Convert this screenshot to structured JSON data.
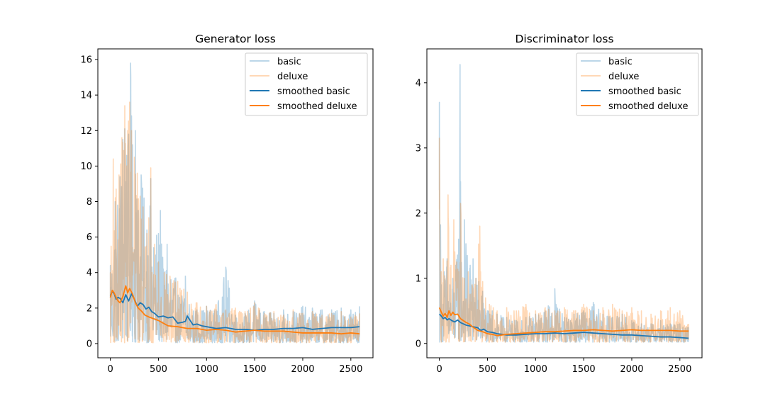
{
  "chart_data": [
    {
      "type": "line",
      "title": "Generator loss",
      "xlabel": "",
      "ylabel": "",
      "xlim": [
        -130,
        2730
      ],
      "ylim": [
        -0.8,
        16.6
      ],
      "xticks": [
        0,
        500,
        1000,
        1500,
        2000,
        2500
      ],
      "yticks": [
        0,
        2,
        4,
        6,
        8,
        10,
        12,
        14,
        16
      ],
      "grid": false,
      "legend_position": "upper right",
      "series": [
        {
          "name": "basic",
          "color": "#1f77b4",
          "alpha": 0.3,
          "kind": "raw",
          "x": [
            0,
            50,
            100,
            130,
            150,
            170,
            190,
            210,
            230,
            260,
            290,
            320,
            350,
            380,
            420,
            450,
            480,
            520,
            550,
            590,
            630,
            680,
            720,
            780,
            820,
            900,
            1000,
            1100,
            1200,
            1300,
            1400,
            1500,
            1600,
            1700,
            1800,
            1900,
            2000,
            2100,
            2200,
            2300,
            2400,
            2500,
            2590
          ],
          "y": [
            4.4,
            8.0,
            9.4,
            11.5,
            12.1,
            10.6,
            11.8,
            15.8,
            11.2,
            12.0,
            7.5,
            9.5,
            8.2,
            6.4,
            9.3,
            5.4,
            6.1,
            7.5,
            4.2,
            5.6,
            3.6,
            3.7,
            2.6,
            3.8,
            2.2,
            1.9,
            2.1,
            1.9,
            4.3,
            1.6,
            1.7,
            2.4,
            1.8,
            1.7,
            1.9,
            1.8,
            2.1,
            2.0,
            1.9,
            1.9,
            2.0,
            1.9,
            2.1
          ]
        },
        {
          "name": "deluxe",
          "color": "#ff7f0e",
          "alpha": 0.3,
          "kind": "raw",
          "x": [
            0,
            30,
            60,
            90,
            120,
            150,
            180,
            200,
            220,
            250,
            280,
            310,
            340,
            380,
            420,
            460,
            500,
            560,
            620,
            700,
            800,
            900,
            1000,
            1100,
            1200,
            1300,
            1400,
            1500,
            1600,
            1700,
            1800,
            1900,
            2000,
            2100,
            2200,
            2300,
            2400,
            2500,
            2590
          ],
          "y": [
            4.0,
            10.4,
            8.7,
            9.5,
            11.6,
            13.4,
            12.0,
            13.6,
            12.0,
            10.5,
            9.6,
            8.3,
            7.7,
            6.2,
            9.9,
            5.6,
            4.6,
            4.0,
            3.8,
            3.5,
            2.9,
            2.3,
            2.1,
            2.2,
            1.9,
            2.0,
            1.8,
            2.3,
            1.7,
            1.8,
            1.6,
            1.9,
            1.7,
            1.8,
            1.6,
            1.7,
            1.8,
            1.5,
            1.7
          ]
        },
        {
          "name": "smoothed basic",
          "color": "#1f77b4",
          "alpha": 1.0,
          "kind": "smoothed",
          "x": [
            0,
            20,
            40,
            60,
            80,
            100,
            130,
            160,
            190,
            220,
            250,
            280,
            310,
            340,
            370,
            400,
            430,
            460,
            500,
            550,
            600,
            650,
            700,
            750,
            780,
            800,
            830,
            860,
            900,
            950,
            1000,
            1100,
            1200,
            1300,
            1400,
            1500,
            1600,
            1700,
            1800,
            1900,
            2000,
            2100,
            2200,
            2300,
            2400,
            2500,
            2590
          ],
          "y": [
            2.7,
            2.95,
            2.8,
            2.5,
            2.6,
            2.55,
            2.3,
            2.75,
            2.4,
            2.8,
            2.5,
            2.1,
            2.3,
            2.2,
            1.95,
            2.05,
            1.8,
            1.7,
            1.5,
            1.55,
            1.45,
            1.5,
            1.15,
            1.2,
            1.25,
            1.55,
            1.3,
            1.05,
            1.1,
            1.0,
            0.95,
            0.85,
            0.9,
            0.8,
            0.8,
            0.75,
            0.8,
            0.8,
            0.85,
            0.85,
            0.9,
            0.8,
            0.85,
            0.9,
            0.9,
            0.9,
            0.95
          ]
        },
        {
          "name": "smoothed deluxe",
          "color": "#ff7f0e",
          "alpha": 1.0,
          "kind": "smoothed",
          "x": [
            0,
            20,
            40,
            60,
            80,
            100,
            130,
            160,
            180,
            200,
            230,
            260,
            290,
            320,
            360,
            400,
            450,
            500,
            550,
            600,
            700,
            800,
            900,
            1000,
            1100,
            1200,
            1300,
            1400,
            1500,
            1600,
            1700,
            1800,
            1900,
            2000,
            2100,
            2200,
            2300,
            2400,
            2500,
            2590
          ],
          "y": [
            2.6,
            3.0,
            2.85,
            2.6,
            2.4,
            2.3,
            2.65,
            3.25,
            2.85,
            3.1,
            2.8,
            2.3,
            2.0,
            1.85,
            1.6,
            1.5,
            1.4,
            1.3,
            1.15,
            1.0,
            0.95,
            0.85,
            0.85,
            0.75,
            0.8,
            0.75,
            0.65,
            0.7,
            0.75,
            0.7,
            0.7,
            0.7,
            0.65,
            0.6,
            0.6,
            0.6,
            0.6,
            0.55,
            0.6,
            0.55
          ]
        }
      ]
    },
    {
      "type": "line",
      "title": "Discriminator loss",
      "xlabel": "",
      "ylabel": "",
      "xlim": [
        -130,
        2730
      ],
      "ylim": [
        -0.22,
        4.52
      ],
      "xticks": [
        0,
        500,
        1000,
        1500,
        2000,
        2500
      ],
      "yticks": [
        0,
        1,
        2,
        3,
        4
      ],
      "grid": false,
      "legend_position": "upper right",
      "series": [
        {
          "name": "basic",
          "color": "#1f77b4",
          "alpha": 0.3,
          "kind": "raw",
          "x": [
            0,
            20,
            50,
            80,
            110,
            140,
            170,
            200,
            215,
            230,
            260,
            290,
            320,
            350,
            380,
            410,
            450,
            500,
            550,
            600,
            700,
            800,
            900,
            1000,
            1100,
            1200,
            1300,
            1400,
            1500,
            1600,
            1700,
            1800,
            1900,
            2000,
            2100,
            2200,
            2300,
            2400,
            2500,
            2590
          ],
          "y": [
            3.7,
            0.9,
            1.1,
            1.3,
            0.9,
            1.0,
            1.2,
            1.6,
            4.28,
            1.1,
            1.9,
            1.35,
            1.2,
            1.3,
            1.0,
            0.95,
            0.8,
            0.5,
            0.5,
            0.45,
            0.4,
            0.35,
            0.4,
            0.45,
            0.5,
            0.84,
            0.4,
            0.45,
            0.5,
            0.63,
            0.45,
            0.4,
            0.45,
            0.35,
            0.3,
            0.3,
            0.35,
            0.3,
            0.3,
            0.25
          ]
        },
        {
          "name": "deluxe",
          "color": "#ff7f0e",
          "alpha": 0.3,
          "kind": "raw",
          "x": [
            0,
            20,
            40,
            60,
            90,
            120,
            150,
            180,
            200,
            220,
            260,
            300,
            340,
            380,
            420,
            450,
            480,
            520,
            560,
            600,
            700,
            800,
            900,
            1000,
            1100,
            1200,
            1300,
            1400,
            1500,
            1600,
            1700,
            1800,
            1900,
            2000,
            2100,
            2200,
            2300,
            2400,
            2500,
            2590
          ],
          "y": [
            3.15,
            1.1,
            1.3,
            1.0,
            2.28,
            1.2,
            1.9,
            1.25,
            1.1,
            2.15,
            1.0,
            1.1,
            0.9,
            1.0,
            1.8,
            0.95,
            0.7,
            0.6,
            0.55,
            0.5,
            0.55,
            0.5,
            0.6,
            0.5,
            0.55,
            0.5,
            0.55,
            0.5,
            0.6,
            0.5,
            0.55,
            0.6,
            0.5,
            0.55,
            0.5,
            0.45,
            0.5,
            0.55,
            0.5,
            0.3
          ]
        },
        {
          "name": "smoothed basic",
          "color": "#1f77b4",
          "alpha": 1.0,
          "kind": "smoothed",
          "x": [
            0,
            20,
            40,
            60,
            80,
            100,
            130,
            160,
            190,
            220,
            250,
            280,
            310,
            340,
            370,
            400,
            430,
            460,
            500,
            550,
            600,
            650,
            700,
            800,
            900,
            1000,
            1100,
            1200,
            1300,
            1400,
            1500,
            1600,
            1700,
            1800,
            1900,
            2000,
            2100,
            2200,
            2300,
            2400,
            2500,
            2590
          ],
          "y": [
            0.45,
            0.42,
            0.38,
            0.4,
            0.36,
            0.38,
            0.35,
            0.33,
            0.36,
            0.32,
            0.3,
            0.28,
            0.27,
            0.26,
            0.25,
            0.24,
            0.2,
            0.22,
            0.18,
            0.17,
            0.15,
            0.14,
            0.13,
            0.13,
            0.14,
            0.15,
            0.15,
            0.16,
            0.15,
            0.16,
            0.17,
            0.16,
            0.15,
            0.14,
            0.13,
            0.13,
            0.12,
            0.11,
            0.1,
            0.1,
            0.09,
            0.08
          ]
        },
        {
          "name": "smoothed deluxe",
          "color": "#ff7f0e",
          "alpha": 1.0,
          "kind": "smoothed",
          "x": [
            0,
            20,
            40,
            60,
            80,
            100,
            120,
            140,
            160,
            190,
            220,
            250,
            280,
            310,
            350,
            400,
            450,
            500,
            550,
            600,
            650,
            700,
            800,
            900,
            1000,
            1100,
            1200,
            1300,
            1400,
            1500,
            1600,
            1700,
            1800,
            1900,
            2000,
            2100,
            2200,
            2300,
            2400,
            2500,
            2590
          ],
          "y": [
            0.55,
            0.48,
            0.42,
            0.46,
            0.4,
            0.5,
            0.43,
            0.48,
            0.44,
            0.45,
            0.38,
            0.35,
            0.32,
            0.3,
            0.25,
            0.2,
            0.18,
            0.15,
            0.14,
            0.12,
            0.13,
            0.14,
            0.15,
            0.16,
            0.17,
            0.18,
            0.18,
            0.19,
            0.2,
            0.2,
            0.21,
            0.2,
            0.19,
            0.2,
            0.21,
            0.2,
            0.2,
            0.2,
            0.2,
            0.19,
            0.19
          ]
        }
      ]
    }
  ]
}
